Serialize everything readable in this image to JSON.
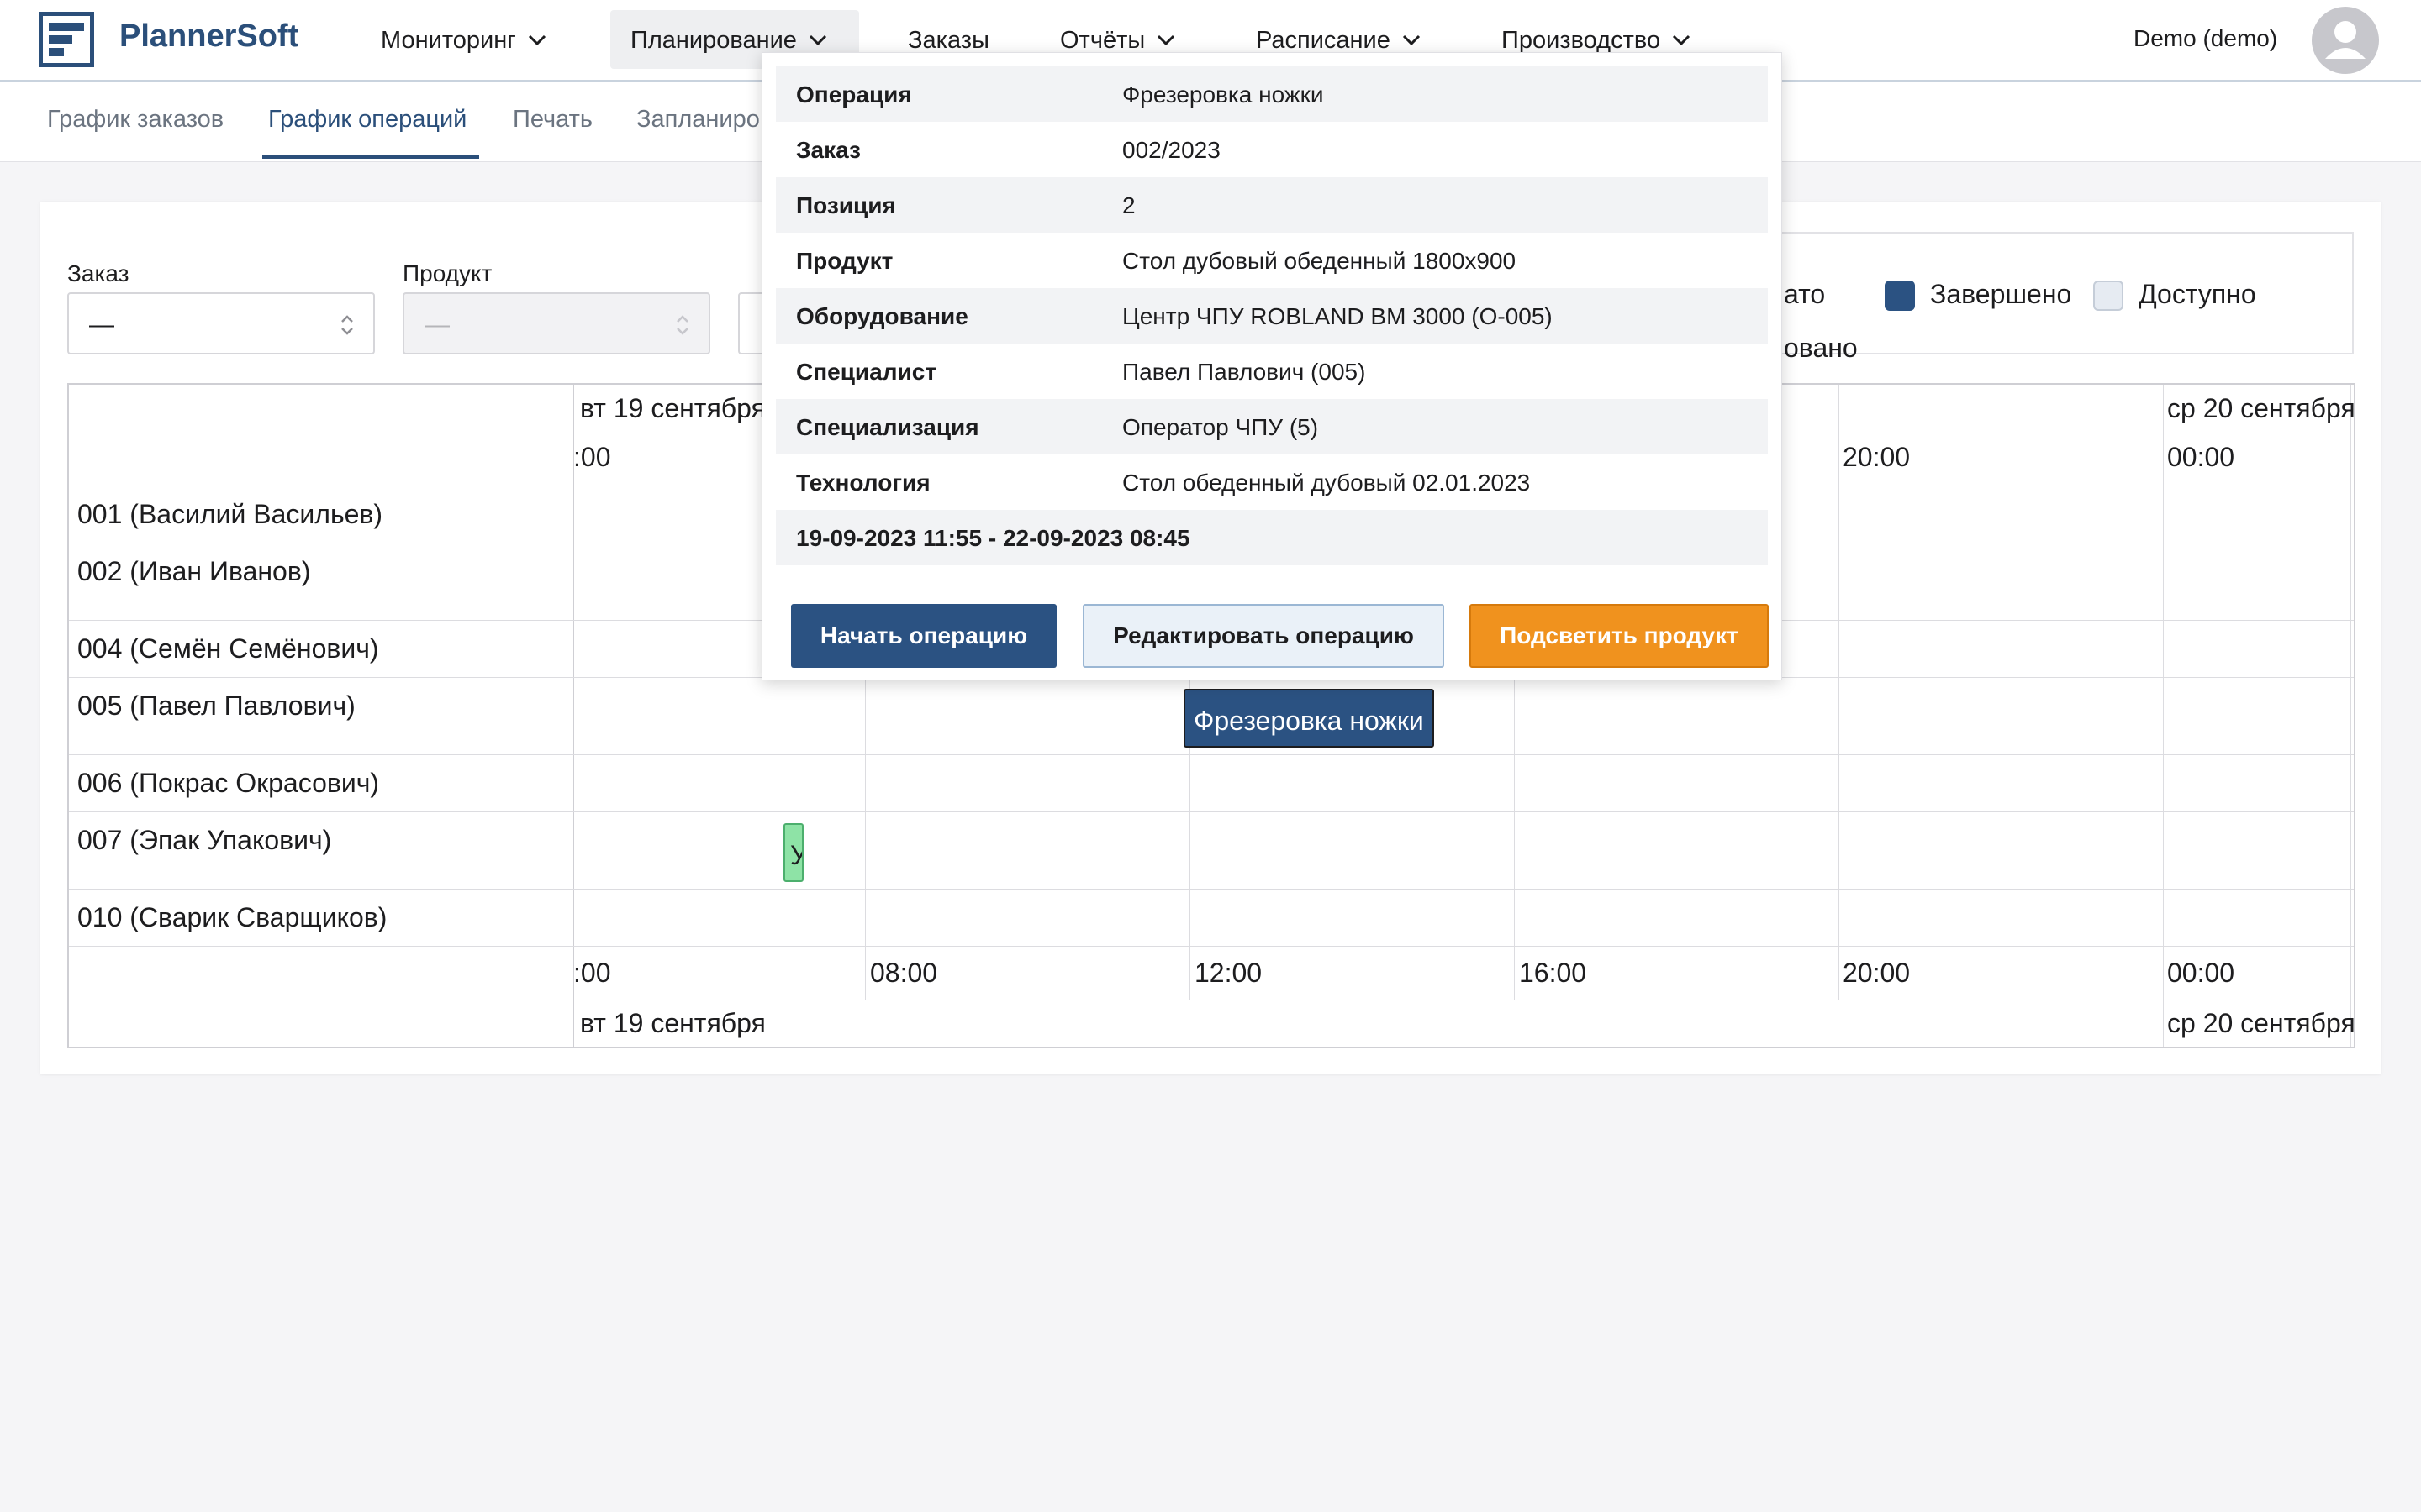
{
  "header": {
    "brand": "PlannerSoft",
    "nav": [
      {
        "label": "Мониторинг",
        "has_menu": true
      },
      {
        "label": "Планирование",
        "has_menu": true,
        "active": true
      },
      {
        "label": "Заказы",
        "has_menu": false
      },
      {
        "label": "Отчёты",
        "has_menu": true
      },
      {
        "label": "Расписание",
        "has_menu": true
      },
      {
        "label": "Производство",
        "has_menu": true
      }
    ],
    "user": "Demo (demo)"
  },
  "subnav": {
    "items": [
      "График заказов",
      "График операций",
      "Печать",
      "Запланиро"
    ],
    "active_index": 1
  },
  "filters": {
    "order": {
      "label": "Заказ",
      "value": "—"
    },
    "product": {
      "label": "Продукт",
      "value": "—",
      "disabled": true
    }
  },
  "legend": {
    "partial_left": "ато",
    "completed": "Завершено",
    "available": "Доступно",
    "partial_second_row": "овано",
    "colors": {
      "completed": "#2b5282",
      "available": "#e6ebf2"
    }
  },
  "gantt": {
    "date_top_left": "вт 19 сентября",
    "date_top_right": "ср 20 сентября",
    "date_bottom_left": "вт 19 сентября",
    "date_bottom_right": "ср 20 сентября",
    "time_top": [
      ":00",
      "20:00",
      "00:00"
    ],
    "time_bottom": [
      ":00",
      "08:00",
      "12:00",
      "16:00",
      "20:00",
      "00:00"
    ],
    "rows": [
      "001 (Василий Васильев)",
      "002 (Иван Иванов)",
      "004 (Семён Семёнович)",
      "005 (Павел Павлович)",
      "006 (Покрас Окрасович)",
      "007 (Эпак Упакович)",
      "010 (Сварик Сварщиков)"
    ],
    "bars": [
      {
        "row": "005 (Павел Павлович)",
        "label": "Фрезеровка ножки",
        "color": "#2b5282"
      },
      {
        "row": "007 (Эпак Упакович)",
        "label": "У",
        "color": "#8ee3a6"
      }
    ]
  },
  "popup": {
    "fields": [
      {
        "key": "Операция",
        "value": "Фрезеровка ножки"
      },
      {
        "key": "Заказ",
        "value": "002/2023"
      },
      {
        "key": "Позиция",
        "value": "2"
      },
      {
        "key": "Продукт",
        "value": "Стол дубовый обеденный 1800x900"
      },
      {
        "key": "Оборудование",
        "value": "Центр ЧПУ ROBLAND BM 3000 (О-005)"
      },
      {
        "key": "Специалист",
        "value": "Павел Павлович (005)"
      },
      {
        "key": "Специализация",
        "value": "Оператор ЧПУ (5)"
      },
      {
        "key": "Технология",
        "value": "Стол обеденный дубовый 02.01.2023"
      }
    ],
    "period": "19-09-2023 11:55 - 22-09-2023 08:45",
    "buttons": {
      "start": "Начать операцию",
      "edit": "Редактировать операцию",
      "highlight": "Подсветить продукт"
    }
  }
}
